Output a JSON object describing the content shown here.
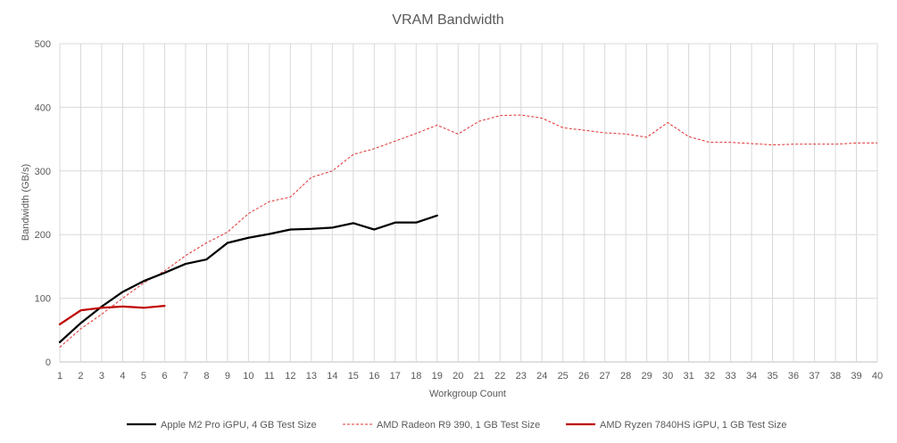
{
  "chart_data": {
    "type": "line",
    "title": "VRAM Bandwidth",
    "xlabel": "Workgroup Count",
    "ylabel": "Bandwidth (GB/s)",
    "xlim": [
      1,
      40
    ],
    "ylim": [
      0,
      500
    ],
    "yticks": [
      0,
      100,
      200,
      300,
      400,
      500
    ],
    "xticks": [
      1,
      2,
      3,
      4,
      5,
      6,
      7,
      8,
      9,
      10,
      11,
      12,
      13,
      14,
      15,
      16,
      17,
      18,
      19,
      20,
      21,
      22,
      23,
      24,
      25,
      26,
      27,
      28,
      29,
      30,
      31,
      32,
      33,
      34,
      35,
      36,
      37,
      38,
      39,
      40
    ],
    "grid": true,
    "legend_position": "bottom",
    "series": [
      {
        "name": "Apple M2 Pro iGPU, 4 GB Test Size",
        "color": "#000000",
        "style": "solid",
        "x": [
          1,
          2,
          3,
          4,
          5,
          6,
          7,
          8,
          9,
          10,
          11,
          12,
          13,
          14,
          15,
          16,
          17,
          18,
          19
        ],
        "values": [
          31,
          61,
          87,
          110,
          127,
          140,
          154,
          161,
          187,
          195,
          201,
          208,
          209,
          211,
          218,
          208,
          219,
          219,
          230
        ]
      },
      {
        "name": "AMD Radeon R9 390, 1 GB Test Size",
        "color": "#e03030",
        "style": "dashed",
        "x": [
          1,
          2,
          3,
          4,
          5,
          6,
          7,
          8,
          9,
          10,
          11,
          12,
          13,
          14,
          15,
          16,
          17,
          18,
          19,
          20,
          21,
          22,
          23,
          24,
          25,
          26,
          27,
          28,
          29,
          30,
          31,
          32,
          33,
          34,
          35,
          36,
          37,
          38,
          39,
          40
        ],
        "values": [
          23,
          52,
          75,
          100,
          124,
          143,
          167,
          187,
          204,
          233,
          252,
          259,
          290,
          300,
          326,
          335,
          347,
          359,
          372,
          358,
          378,
          387,
          388,
          383,
          368,
          364,
          360,
          358,
          353,
          376,
          354,
          345,
          345,
          343,
          341,
          342,
          342,
          342,
          344,
          344
        ]
      },
      {
        "name": "AMD Ryzen 7840HS iGPU, 1 GB Test Size",
        "color": "#c00000",
        "style": "solid",
        "x": [
          1,
          2,
          3,
          4,
          5,
          6
        ],
        "values": [
          59,
          81,
          85,
          87,
          85,
          88
        ]
      }
    ]
  }
}
